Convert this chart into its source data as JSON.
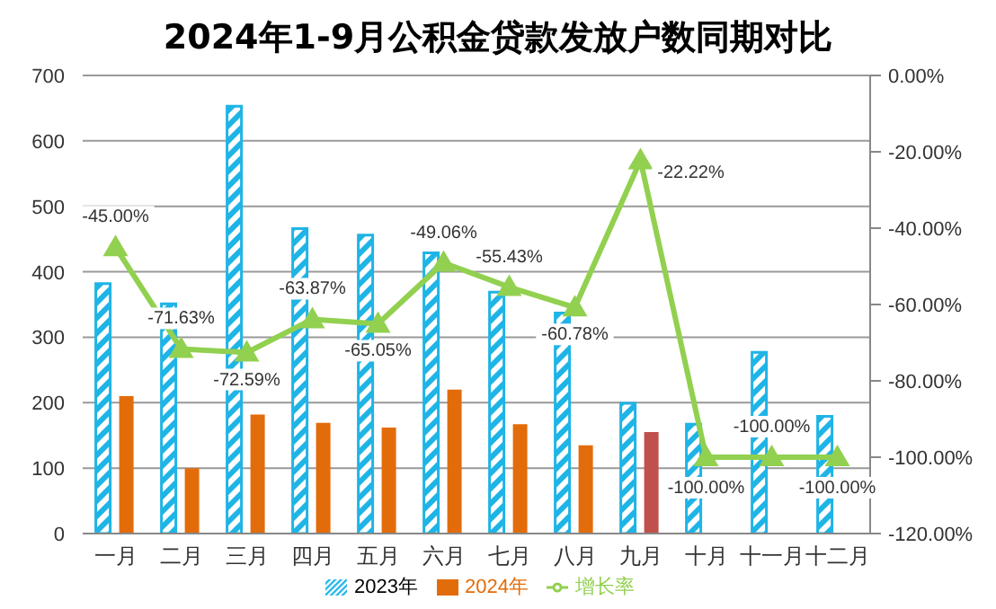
{
  "chart_data": {
    "type": "bar",
    "title": "2024年1-9月公积金贷款发放户数同期对比",
    "categories": [
      "一月",
      "二月",
      "三月",
      "四月",
      "五月",
      "六月",
      "七月",
      "八月",
      "九月",
      "十月",
      "十一月",
      "十二月"
    ],
    "series": [
      {
        "name": "2023年",
        "color": "#1fb4e6",
        "values": [
          382,
          351,
          653,
          466,
          456,
          429,
          369,
          337,
          199,
          167,
          277,
          179
        ]
      },
      {
        "name": "2024年",
        "color": "#e36c0a",
        "colors": [
          "#e36c0a",
          "#e36c0a",
          "#e36c0a",
          "#e36c0a",
          "#e36c0a",
          "#e36c0a",
          "#e36c0a",
          "#e36c0a",
          "#c0504d",
          null,
          null,
          null
        ],
        "values": [
          210,
          100,
          182,
          169,
          162,
          220,
          167,
          135,
          155,
          null,
          null,
          null
        ]
      },
      {
        "name": "增长率",
        "type": "line",
        "axis": "y2",
        "color": "#92d050",
        "marker": "triangle",
        "values": [
          -45.0,
          -71.63,
          -72.59,
          -63.87,
          -65.05,
          -49.06,
          -55.43,
          -60.78,
          -22.22,
          -100.0,
          -100.0,
          -100.0
        ],
        "value_labels": [
          "-45.00%",
          "-71.63%",
          "-72.59%",
          "-63.87%",
          "-65.05%",
          "-49.06%",
          "-55.43%",
          "-60.78%",
          "-22.22%",
          "-100.00%",
          "-100.00%",
          "-100.00%"
        ]
      }
    ],
    "ylim": [
      0,
      700
    ],
    "yticks": [
      0,
      100,
      200,
      300,
      400,
      500,
      600,
      700
    ],
    "y2lim": [
      -120,
      0
    ],
    "y2ticks": [
      {
        "value": -120,
        "label": "-120.00%"
      },
      {
        "value": -100,
        "label": "-100.00%"
      },
      {
        "value": -80,
        "label": "-80.00%"
      },
      {
        "value": -60,
        "label": "-60.00%"
      },
      {
        "value": -40,
        "label": "-40.00%"
      },
      {
        "value": -20,
        "label": "-20.00%"
      },
      {
        "value": 0,
        "label": "0.00%"
      }
    ],
    "grid": "y",
    "legend": "bottom"
  }
}
